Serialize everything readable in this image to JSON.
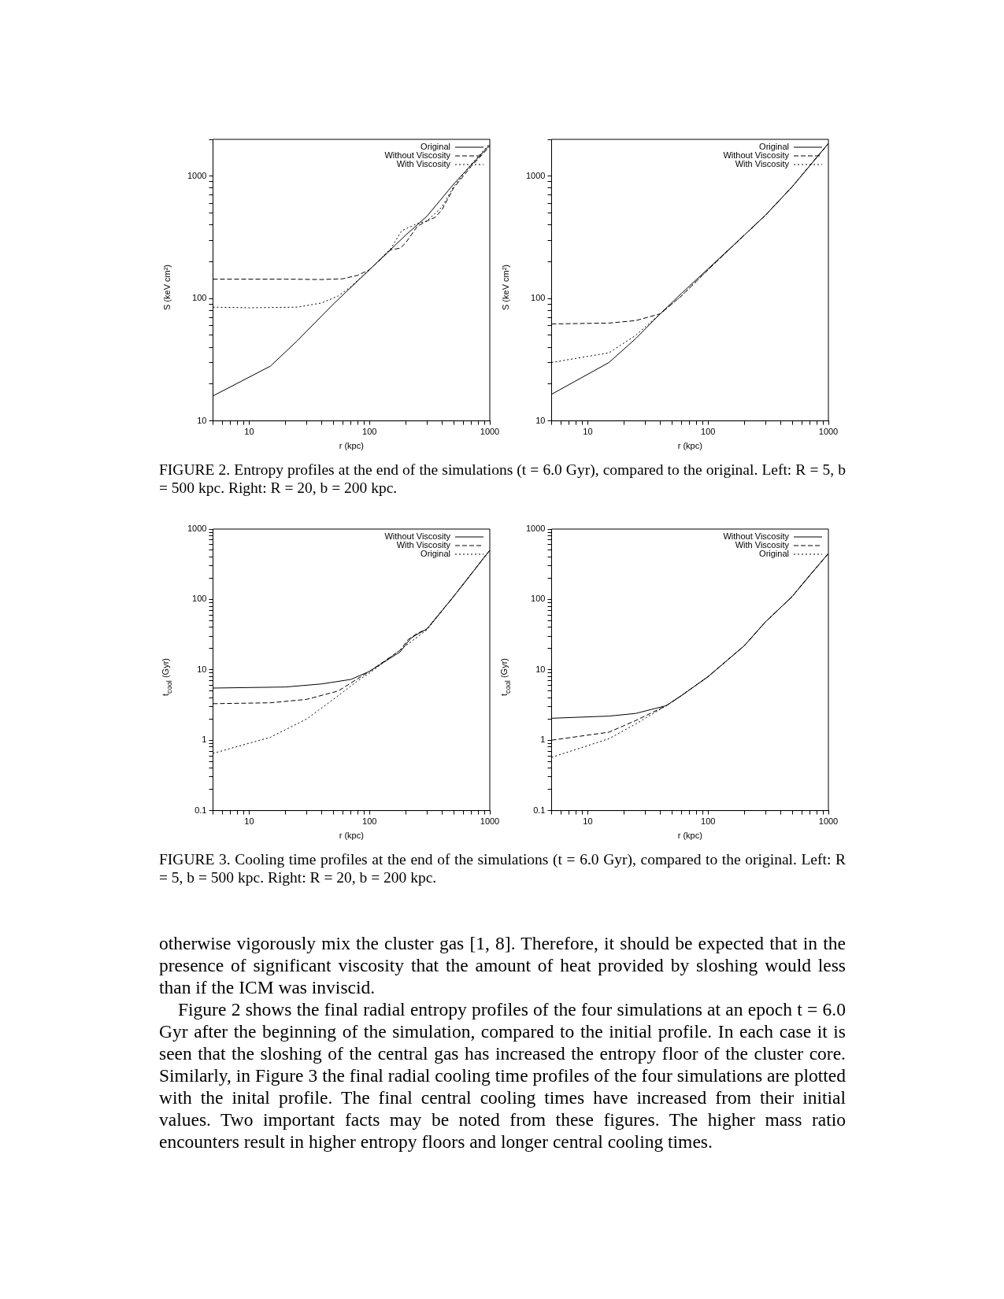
{
  "chart_data": [
    {
      "type": "line",
      "xlabel": "r (kpc)",
      "ylabel": "S (keV cm²)",
      "log": "xy",
      "grid": false,
      "legend": "top right",
      "marker": "none",
      "xlim": [
        5,
        1000
      ],
      "ylim": [
        10,
        2000
      ],
      "xticks": [
        {
          "value": 5,
          "label": null
        },
        {
          "value": 6,
          "label": null
        },
        {
          "value": 7,
          "label": null
        },
        {
          "value": 8,
          "label": null
        },
        {
          "value": 9,
          "label": null
        },
        10,
        {
          "value": 20,
          "label": null
        },
        {
          "value": 30,
          "label": null
        },
        {
          "value": 40,
          "label": null
        },
        {
          "value": 50,
          "label": null
        },
        {
          "value": 60,
          "label": null
        },
        {
          "value": 70,
          "label": null
        },
        {
          "value": 80,
          "label": null
        },
        {
          "value": 90,
          "label": null
        },
        100,
        {
          "value": 200,
          "label": null
        },
        {
          "value": 300,
          "label": null
        },
        {
          "value": 400,
          "label": null
        },
        {
          "value": 500,
          "label": null
        },
        {
          "value": 600,
          "label": null
        },
        {
          "value": 700,
          "label": null
        },
        {
          "value": 800,
          "label": null
        },
        {
          "value": 900,
          "label": null
        },
        1000
      ],
      "yticks": [
        10,
        {
          "value": 20,
          "label": null
        },
        {
          "value": 30,
          "label": null
        },
        {
          "value": 40,
          "label": null
        },
        {
          "value": 50,
          "label": null
        },
        {
          "value": 60,
          "label": null
        },
        {
          "value": 70,
          "label": null
        },
        {
          "value": 80,
          "label": null
        },
        {
          "value": 90,
          "label": null
        },
        100,
        {
          "value": 200,
          "label": null
        },
        {
          "value": 300,
          "label": null
        },
        {
          "value": 400,
          "label": null
        },
        {
          "value": 500,
          "label": null
        },
        {
          "value": 600,
          "label": null
        },
        {
          "value": 700,
          "label": null
        },
        {
          "value": 800,
          "label": null
        },
        {
          "value": 900,
          "label": null
        },
        1000,
        {
          "value": 2000,
          "label": null
        }
      ],
      "series": [
        {
          "name": "Original",
          "color": "#000000",
          "line_style": "solid",
          "x": [
            5,
            15,
            25,
            50,
            100,
            200,
            300,
            500,
            1000
          ],
          "values": [
            16,
            28,
            45,
            90,
            172,
            330,
            470,
            860,
            1800
          ]
        },
        {
          "name": "Without Viscosity",
          "color": "#000000",
          "line_style": "dashed",
          "x": [
            5,
            20,
            40,
            60,
            80,
            100,
            150,
            180,
            200,
            250,
            300,
            350,
            400,
            500,
            700,
            1000
          ],
          "values": [
            144,
            144,
            143,
            145,
            155,
            172,
            250,
            258,
            285,
            390,
            430,
            460,
            530,
            800,
            1200,
            1750
          ]
        },
        {
          "name": "With Viscosity",
          "color": "#000000",
          "line_style": "dotted",
          "x": [
            5,
            10,
            25,
            40,
            55,
            70,
            100,
            150,
            185,
            250,
            300,
            400,
            500,
            700,
            1000
          ],
          "values": [
            85,
            84,
            85,
            92,
            105,
            125,
            172,
            255,
            358,
            410,
            430,
            560,
            820,
            1250,
            1850
          ]
        }
      ]
    },
    {
      "type": "line",
      "xlabel": "r (kpc)",
      "ylabel": "S (keV cm²)",
      "log": "xy",
      "grid": false,
      "legend": "top right",
      "marker": "none",
      "xlim": [
        5,
        1000
      ],
      "ylim": [
        10,
        2000
      ],
      "xticks": [
        {
          "value": 5,
          "label": null
        },
        {
          "value": 6,
          "label": null
        },
        {
          "value": 7,
          "label": null
        },
        {
          "value": 8,
          "label": null
        },
        {
          "value": 9,
          "label": null
        },
        10,
        {
          "value": 20,
          "label": null
        },
        {
          "value": 30,
          "label": null
        },
        {
          "value": 40,
          "label": null
        },
        {
          "value": 50,
          "label": null
        },
        {
          "value": 60,
          "label": null
        },
        {
          "value": 70,
          "label": null
        },
        {
          "value": 80,
          "label": null
        },
        {
          "value": 90,
          "label": null
        },
        100,
        {
          "value": 200,
          "label": null
        },
        {
          "value": 300,
          "label": null
        },
        {
          "value": 400,
          "label": null
        },
        {
          "value": 500,
          "label": null
        },
        {
          "value": 600,
          "label": null
        },
        {
          "value": 700,
          "label": null
        },
        {
          "value": 800,
          "label": null
        },
        {
          "value": 900,
          "label": null
        },
        1000
      ],
      "yticks": [
        10,
        {
          "value": 20,
          "label": null
        },
        {
          "value": 30,
          "label": null
        },
        {
          "value": 40,
          "label": null
        },
        {
          "value": 50,
          "label": null
        },
        {
          "value": 60,
          "label": null
        },
        {
          "value": 70,
          "label": null
        },
        {
          "value": 80,
          "label": null
        },
        {
          "value": 90,
          "label": null
        },
        100,
        {
          "value": 200,
          "label": null
        },
        {
          "value": 300,
          "label": null
        },
        {
          "value": 400,
          "label": null
        },
        {
          "value": 500,
          "label": null
        },
        {
          "value": 600,
          "label": null
        },
        {
          "value": 700,
          "label": null
        },
        {
          "value": 800,
          "label": null
        },
        {
          "value": 900,
          "label": null
        },
        1000,
        {
          "value": 2000,
          "label": null
        }
      ],
      "annotations": [
        "FIGURE 2.    Entropy profiles at the end of the simulations (t = 6.0 Gyr), compared to the original. Left: R = 5, b = 500 kpc. Right: R = 20, b = 200 kpc."
      ],
      "series": [
        {
          "name": "Original",
          "color": "#000000",
          "line_style": "solid",
          "x": [
            5,
            15,
            25,
            40,
            60,
            100,
            200,
            300,
            500,
            1000
          ],
          "values": [
            16.5,
            30,
            47,
            75,
            110,
            175,
            330,
            480,
            820,
            1850
          ]
        },
        {
          "name": "Without Viscosity",
          "color": "#000000",
          "line_style": "dashed",
          "x": [
            5,
            15,
            25,
            40,
            60,
            100,
            200,
            300,
            500,
            1000
          ],
          "values": [
            62,
            63,
            66,
            75,
            105,
            172,
            330,
            480,
            820,
            1850
          ]
        },
        {
          "name": "With Viscosity",
          "color": "#000000",
          "line_style": "dotted",
          "x": [
            5,
            15,
            25,
            40,
            60,
            100,
            200,
            300,
            500,
            1000
          ],
          "values": [
            30,
            36,
            50,
            75,
            105,
            172,
            330,
            480,
            820,
            1850
          ]
        }
      ]
    },
    {
      "type": "line",
      "xlabel": "r (kpc)",
      "ylabel": "t$_{cool}$ (Gyr)",
      "log": "xy",
      "grid": false,
      "legend": "top right",
      "marker": "none",
      "xlim": [
        5,
        1000
      ],
      "ylim": [
        0.1,
        1000
      ],
      "xticks": [
        {
          "value": 5,
          "label": null
        },
        {
          "value": 6,
          "label": null
        },
        {
          "value": 7,
          "label": null
        },
        {
          "value": 8,
          "label": null
        },
        {
          "value": 9,
          "label": null
        },
        10,
        {
          "value": 20,
          "label": null
        },
        {
          "value": 30,
          "label": null
        },
        {
          "value": 40,
          "label": null
        },
        {
          "value": 50,
          "label": null
        },
        {
          "value": 60,
          "label": null
        },
        {
          "value": 70,
          "label": null
        },
        {
          "value": 80,
          "label": null
        },
        {
          "value": 90,
          "label": null
        },
        100,
        {
          "value": 200,
          "label": null
        },
        {
          "value": 300,
          "label": null
        },
        {
          "value": 400,
          "label": null
        },
        {
          "value": 500,
          "label": null
        },
        {
          "value": 600,
          "label": null
        },
        {
          "value": 700,
          "label": null
        },
        {
          "value": 800,
          "label": null
        },
        {
          "value": 900,
          "label": null
        },
        1000
      ],
      "yticks": [
        0.1,
        {
          "value": 0.2,
          "label": null
        },
        {
          "value": 0.3,
          "label": null
        },
        {
          "value": 0.4,
          "label": null
        },
        {
          "value": 0.5,
          "label": null
        },
        {
          "value": 0.6,
          "label": null
        },
        {
          "value": 0.7,
          "label": null
        },
        {
          "value": 0.8,
          "label": null
        },
        {
          "value": 0.9,
          "label": null
        },
        1,
        {
          "value": 2,
          "label": null
        },
        {
          "value": 3,
          "label": null
        },
        {
          "value": 4,
          "label": null
        },
        {
          "value": 5,
          "label": null
        },
        {
          "value": 6,
          "label": null
        },
        {
          "value": 7,
          "label": null
        },
        {
          "value": 8,
          "label": null
        },
        {
          "value": 9,
          "label": null
        },
        10,
        {
          "value": 20,
          "label": null
        },
        {
          "value": 30,
          "label": null
        },
        {
          "value": 40,
          "label": null
        },
        {
          "value": 50,
          "label": null
        },
        {
          "value": 60,
          "label": null
        },
        {
          "value": 70,
          "label": null
        },
        {
          "value": 80,
          "label": null
        },
        {
          "value": 90,
          "label": null
        },
        100,
        {
          "value": 200,
          "label": null
        },
        {
          "value": 300,
          "label": null
        },
        {
          "value": 400,
          "label": null
        },
        {
          "value": 500,
          "label": null
        },
        {
          "value": 600,
          "label": null
        },
        {
          "value": 700,
          "label": null
        },
        {
          "value": 800,
          "label": null
        },
        {
          "value": 900,
          "label": null
        },
        1000
      ],
      "series": [
        {
          "name": "Without Viscosity",
          "color": "#000000",
          "line_style": "solid",
          "x": [
            5,
            20,
            40,
            70,
            100,
            180,
            220,
            250,
            300,
            500,
            1000
          ],
          "values": [
            5.5,
            5.7,
            6.3,
            7.3,
            9.5,
            18,
            28,
            32,
            38,
            110,
            500
          ]
        },
        {
          "name": "With Viscosity",
          "color": "#000000",
          "line_style": "dashed",
          "x": [
            5,
            15,
            30,
            55,
            80,
            100,
            180,
            210,
            250,
            300,
            500,
            1000
          ],
          "values": [
            3.3,
            3.4,
            3.8,
            5,
            7.5,
            9.5,
            19,
            27,
            33,
            38,
            110,
            500
          ]
        },
        {
          "name": "Original",
          "color": "#000000",
          "line_style": "dotted",
          "x": [
            5,
            15,
            30,
            50,
            80,
            100,
            200,
            300,
            500,
            1000
          ],
          "values": [
            0.65,
            1.1,
            2,
            3.8,
            7,
            9,
            22,
            37,
            110,
            500
          ]
        }
      ]
    },
    {
      "type": "line",
      "xlabel": "r (kpc)",
      "ylabel": "t$_{cool}$ (Gyr)",
      "log": "xy",
      "grid": false,
      "legend": "top right",
      "marker": "none",
      "xlim": [
        5,
        1000
      ],
      "ylim": [
        0.1,
        1000
      ],
      "xticks": [
        {
          "value": 5,
          "label": null
        },
        {
          "value": 6,
          "label": null
        },
        {
          "value": 7,
          "label": null
        },
        {
          "value": 8,
          "label": null
        },
        {
          "value": 9,
          "label": null
        },
        10,
        {
          "value": 20,
          "label": null
        },
        {
          "value": 30,
          "label": null
        },
        {
          "value": 40,
          "label": null
        },
        {
          "value": 50,
          "label": null
        },
        {
          "value": 60,
          "label": null
        },
        {
          "value": 70,
          "label": null
        },
        {
          "value": 80,
          "label": null
        },
        {
          "value": 90,
          "label": null
        },
        100,
        {
          "value": 200,
          "label": null
        },
        {
          "value": 300,
          "label": null
        },
        {
          "value": 400,
          "label": null
        },
        {
          "value": 500,
          "label": null
        },
        {
          "value": 600,
          "label": null
        },
        {
          "value": 700,
          "label": null
        },
        {
          "value": 800,
          "label": null
        },
        {
          "value": 900,
          "label": null
        },
        1000
      ],
      "yticks": [
        0.1,
        {
          "value": 0.2,
          "label": null
        },
        {
          "value": 0.3,
          "label": null
        },
        {
          "value": 0.4,
          "label": null
        },
        {
          "value": 0.5,
          "label": null
        },
        {
          "value": 0.6,
          "label": null
        },
        {
          "value": 0.7,
          "label": null
        },
        {
          "value": 0.8,
          "label": null
        },
        {
          "value": 0.9,
          "label": null
        },
        1,
        {
          "value": 2,
          "label": null
        },
        {
          "value": 3,
          "label": null
        },
        {
          "value": 4,
          "label": null
        },
        {
          "value": 5,
          "label": null
        },
        {
          "value": 6,
          "label": null
        },
        {
          "value": 7,
          "label": null
        },
        {
          "value": 8,
          "label": null
        },
        {
          "value": 9,
          "label": null
        },
        10,
        {
          "value": 20,
          "label": null
        },
        {
          "value": 30,
          "label": null
        },
        {
          "value": 40,
          "label": null
        },
        {
          "value": 50,
          "label": null
        },
        {
          "value": 60,
          "label": null
        },
        {
          "value": 70,
          "label": null
        },
        {
          "value": 80,
          "label": null
        },
        {
          "value": 90,
          "label": null
        },
        100,
        {
          "value": 200,
          "label": null
        },
        {
          "value": 300,
          "label": null
        },
        {
          "value": 400,
          "label": null
        },
        {
          "value": 500,
          "label": null
        },
        {
          "value": 600,
          "label": null
        },
        {
          "value": 700,
          "label": null
        },
        {
          "value": 800,
          "label": null
        },
        {
          "value": 900,
          "label": null
        },
        1000
      ],
      "annotations": [
        "FIGURE 3.    Cooling time profiles at the end of the simulations (t = 6.0 Gyr), compared to the original. Left: R = 5, b = 500 kpc. Right: R = 20, b = 200 kpc.",
        "otherwise vigorously mix the cluster gas [1, 8]. Therefore, it should be expected that in the presence of significant viscosity that the amount of heat provided by sloshing would less than if the ICM was inviscid.",
        "Figure 2 shows the final radial entropy profiles of the four simulations at an epoch t = 6.0 Gyr after the beginning of the simulation, compared to the initial profile. In each case it is seen that the sloshing of the central gas has increased the entropy floor of the cluster core. Similarly, in Figure 3 the final radial cooling time profiles of the four simulations are plotted with the inital profile. The final central cooling times have increased from their initial values. Two important facts may be noted from these figures. The higher mass ratio encounters result in higher entropy floors and longer central cooling times."
      ],
      "series": [
        {
          "name": "Without Viscosity",
          "color": "#000000",
          "line_style": "solid",
          "x": [
            5,
            15,
            25,
            45,
            60,
            100,
            200,
            300,
            500,
            700,
            1000
          ],
          "values": [
            2.05,
            2.2,
            2.4,
            3.1,
            4.3,
            8,
            22,
            48,
            110,
            220,
            450
          ]
        },
        {
          "name": "With Viscosity",
          "color": "#000000",
          "line_style": "dashed",
          "x": [
            5,
            15,
            25,
            45,
            60,
            100,
            200,
            300,
            500,
            700,
            1000
          ],
          "values": [
            1,
            1.3,
            1.9,
            3.1,
            4.3,
            8,
            22,
            48,
            110,
            220,
            450
          ]
        },
        {
          "name": "Original",
          "color": "#000000",
          "line_style": "dotted",
          "x": [
            5,
            15,
            25,
            45,
            60,
            100,
            200,
            300,
            500,
            700,
            1000
          ],
          "values": [
            0.57,
            1.05,
            1.7,
            3.1,
            4.3,
            8,
            22,
            48,
            110,
            220,
            450
          ]
        }
      ]
    }
  ]
}
